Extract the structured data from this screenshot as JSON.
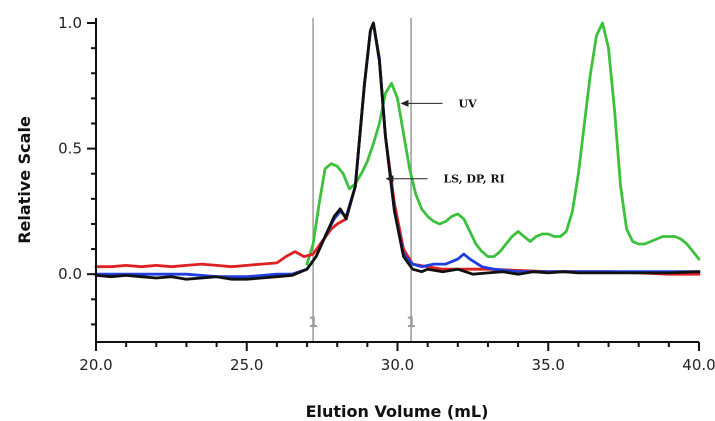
{
  "chart_data": {
    "type": "line",
    "title": "",
    "xlabel": "Elution Volume (mL)",
    "ylabel": "Relative Scale",
    "xlim": [
      20.0,
      40.0
    ],
    "ylim": [
      -0.27,
      1.02
    ],
    "x_ticks": [
      "20.0",
      "25.0",
      "30.0",
      "35.0",
      "40.0"
    ],
    "y_ticks": [
      "0.0",
      "0.5",
      "1.0"
    ],
    "grid": false,
    "markers": [
      {
        "x": 27.2,
        "label": "1"
      },
      {
        "x": 30.45,
        "label": "1"
      }
    ],
    "annotations": [
      {
        "text": "UV",
        "x": 30.1,
        "y": 0.68
      },
      {
        "text": "LS, DP, RI",
        "x": 29.6,
        "y": 0.38
      }
    ],
    "series": [
      {
        "color": "#3cc13c",
        "x": [
          27.0,
          27.2,
          27.4,
          27.6,
          27.8,
          28.0,
          28.2,
          28.4,
          28.6,
          28.8,
          29.0,
          29.2,
          29.4,
          29.6,
          29.8,
          30.0,
          30.2,
          30.4,
          30.6,
          30.8,
          31.0,
          31.2,
          31.4,
          31.6,
          31.8,
          32.0,
          32.2,
          32.4,
          32.6,
          32.8,
          33.0,
          33.2,
          33.4,
          33.6,
          33.8,
          34.0,
          34.2,
          34.4,
          34.6,
          34.8,
          35.0,
          35.2,
          35.4,
          35.6,
          35.8,
          36.0,
          36.2,
          36.4,
          36.6,
          36.8,
          37.0,
          37.2,
          37.4,
          37.6,
          37.8,
          38.0,
          38.2,
          38.4,
          38.6,
          38.8,
          39.0,
          39.2,
          39.4,
          39.6,
          39.8,
          40.0
        ],
        "values": [
          0.04,
          0.12,
          0.28,
          0.42,
          0.44,
          0.43,
          0.4,
          0.34,
          0.36,
          0.4,
          0.45,
          0.52,
          0.6,
          0.72,
          0.76,
          0.7,
          0.56,
          0.42,
          0.32,
          0.26,
          0.23,
          0.21,
          0.2,
          0.21,
          0.23,
          0.24,
          0.22,
          0.17,
          0.12,
          0.09,
          0.07,
          0.07,
          0.09,
          0.12,
          0.15,
          0.17,
          0.15,
          0.13,
          0.15,
          0.16,
          0.16,
          0.15,
          0.15,
          0.17,
          0.25,
          0.4,
          0.6,
          0.8,
          0.95,
          1.0,
          0.9,
          0.65,
          0.35,
          0.18,
          0.13,
          0.12,
          0.12,
          0.13,
          0.14,
          0.15,
          0.15,
          0.15,
          0.14,
          0.12,
          0.09,
          0.06
        ]
      },
      {
        "color": "#e02020",
        "x": [
          20.0,
          20.5,
          21.0,
          21.5,
          22.0,
          22.5,
          23.0,
          23.5,
          24.0,
          24.5,
          25.0,
          25.5,
          26.0,
          26.3,
          26.6,
          26.9,
          27.2,
          27.5,
          27.8,
          28.0,
          28.3,
          28.6,
          28.9,
          29.1,
          29.2,
          29.4,
          29.6,
          29.9,
          30.2,
          30.5,
          31.0,
          31.5,
          32.0,
          32.5,
          33.0,
          34.0,
          35.0,
          36.0,
          37.0,
          38.0,
          39.0,
          40.0
        ],
        "values": [
          0.03,
          0.03,
          0.035,
          0.03,
          0.035,
          0.03,
          0.035,
          0.04,
          0.035,
          0.03,
          0.035,
          0.04,
          0.045,
          0.07,
          0.09,
          0.07,
          0.08,
          0.13,
          0.18,
          0.2,
          0.22,
          0.35,
          0.75,
          0.97,
          1.0,
          0.85,
          0.55,
          0.28,
          0.1,
          0.04,
          0.03,
          0.02,
          0.02,
          0.02,
          0.02,
          0.015,
          0.01,
          0.01,
          0.01,
          0.005,
          0.0,
          0.0
        ]
      },
      {
        "color": "#1f3ee0",
        "x": [
          20.0,
          21.0,
          22.0,
          23.0,
          24.0,
          25.0,
          26.0,
          26.5,
          27.0,
          27.3,
          27.6,
          27.9,
          28.1,
          28.3,
          28.6,
          28.9,
          29.1,
          29.2,
          29.4,
          29.6,
          29.9,
          30.2,
          30.5,
          30.8,
          31.2,
          31.6,
          32.0,
          32.2,
          32.4,
          32.8,
          33.2,
          34.0,
          35.0,
          36.0,
          37.0,
          38.0,
          39.0,
          40.0
        ],
        "values": [
          0.0,
          0.0,
          0.0,
          0.0,
          -0.01,
          -0.01,
          0.0,
          0.0,
          0.02,
          0.07,
          0.15,
          0.22,
          0.25,
          0.23,
          0.35,
          0.75,
          0.97,
          1.0,
          0.86,
          0.55,
          0.25,
          0.08,
          0.04,
          0.03,
          0.04,
          0.04,
          0.06,
          0.08,
          0.06,
          0.03,
          0.02,
          0.01,
          0.01,
          0.01,
          0.01,
          0.01,
          0.01,
          0.01
        ]
      },
      {
        "color": "#111111",
        "x": [
          20.0,
          20.5,
          21.0,
          21.5,
          22.0,
          22.5,
          23.0,
          23.5,
          24.0,
          24.5,
          25.0,
          25.5,
          26.0,
          26.5,
          27.0,
          27.3,
          27.6,
          27.9,
          28.1,
          28.3,
          28.6,
          28.9,
          29.1,
          29.2,
          29.4,
          29.6,
          29.9,
          30.2,
          30.5,
          30.8,
          31.0,
          31.5,
          32.0,
          32.5,
          33.0,
          33.5,
          34.0,
          34.5,
          35.0,
          35.5,
          36.0,
          37.0,
          38.0,
          39.0,
          40.0
        ],
        "values": [
          -0.005,
          -0.01,
          -0.005,
          -0.01,
          -0.015,
          -0.01,
          -0.02,
          -0.015,
          -0.01,
          -0.02,
          -0.02,
          -0.015,
          -0.01,
          -0.005,
          0.02,
          0.07,
          0.15,
          0.23,
          0.26,
          0.22,
          0.35,
          0.75,
          0.97,
          1.0,
          0.85,
          0.55,
          0.25,
          0.07,
          0.02,
          0.01,
          0.02,
          0.01,
          0.02,
          0.0,
          0.005,
          0.01,
          0.0,
          0.01,
          0.005,
          0.01,
          0.005,
          0.005,
          0.005,
          0.005,
          0.01
        ]
      }
    ]
  }
}
